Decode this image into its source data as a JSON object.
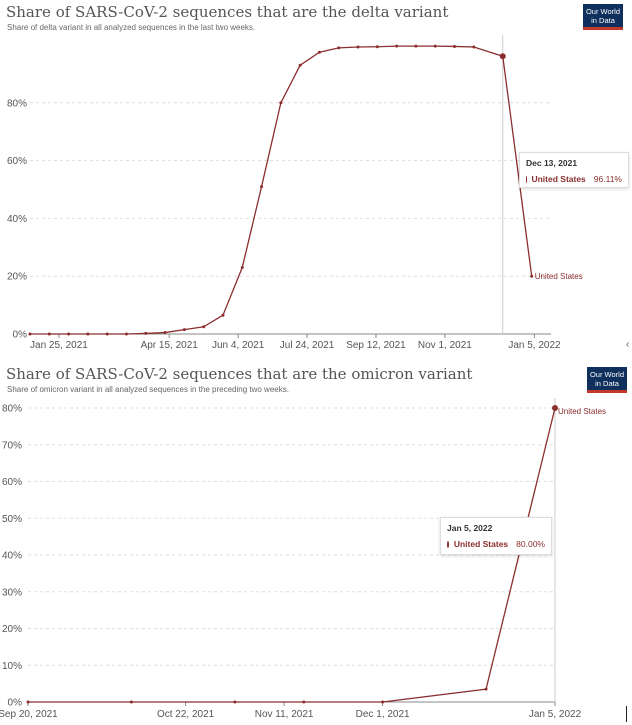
{
  "colors": {
    "series": "#8b2e2e",
    "grid": "#dddddd",
    "axis": "#888888",
    "logo_bg": "#0f2f5c",
    "logo_accent": "#c0392b"
  },
  "icons": {
    "edge": "chevron-left-icon"
  },
  "chart_data": [
    {
      "type": "line",
      "title": "Share of SARS-CoV-2 sequences that are the delta variant",
      "subtitle": "Share of delta variant in all analyzed sequences in the last two weeks.",
      "logo": [
        "Our World",
        "in Data"
      ],
      "ylim": [
        0,
        100
      ],
      "grid": true,
      "yticks": [
        0,
        20,
        40,
        60,
        80
      ],
      "ytick_labels": [
        "0%",
        "20%",
        "40%",
        "60%",
        "80%"
      ],
      "xlim": [
        "2021-01-04",
        "2022-01-17"
      ],
      "xticks": [
        "2021-01-25",
        "2021-04-15",
        "2021-06-04",
        "2021-07-24",
        "2021-09-12",
        "2021-11-01",
        "2022-01-05"
      ],
      "xtick_labels": [
        "Jan 25, 2021",
        "Apr 15, 2021",
        "Jun 4, 2021",
        "Jul 24, 2021",
        "Sep 12, 2021",
        "Nov 1, 2021",
        "Jan 5, 2022"
      ],
      "series": [
        {
          "name": "United States",
          "x": [
            "2021-01-04",
            "2021-01-18",
            "2021-02-01",
            "2021-02-15",
            "2021-03-01",
            "2021-03-15",
            "2021-03-29",
            "2021-04-12",
            "2021-04-26",
            "2021-05-10",
            "2021-05-24",
            "2021-06-07",
            "2021-06-21",
            "2021-07-05",
            "2021-07-19",
            "2021-08-02",
            "2021-08-16",
            "2021-08-30",
            "2021-09-13",
            "2021-09-27",
            "2021-10-11",
            "2021-10-25",
            "2021-11-08",
            "2021-11-22",
            "2021-12-13",
            "2022-01-03"
          ],
          "y": [
            0,
            0,
            0,
            0,
            0,
            0,
            0.2,
            0.5,
            1.5,
            2.5,
            6.5,
            23,
            51,
            80,
            93,
            97.5,
            99,
            99.3,
            99.4,
            99.6,
            99.6,
            99.6,
            99.5,
            99.3,
            96.11,
            20
          ]
        }
      ],
      "end_label": "United States",
      "tooltip": {
        "date": "Dec 13, 2021",
        "series": "United States",
        "value": "96.11%",
        "value_num": 96.11,
        "x": "2021-12-13"
      }
    },
    {
      "type": "line",
      "title": "Share of SARS-CoV-2 sequences that are the omicron variant",
      "subtitle": "Share of omicron variant in all analyzed sequences in the preceding two weeks.",
      "logo": [
        "Our World",
        "in Data"
      ],
      "ylim": [
        0,
        80
      ],
      "grid": true,
      "yticks": [
        0,
        10,
        20,
        30,
        40,
        50,
        60,
        70,
        80
      ],
      "ytick_labels": [
        "0%",
        "10%",
        "20%",
        "30%",
        "40%",
        "50%",
        "60%",
        "70%",
        "80%"
      ],
      "xlim": [
        "2021-09-20",
        "2022-01-05"
      ],
      "xticks": [
        "2021-09-20",
        "2021-10-22",
        "2021-11-11",
        "2021-12-01",
        "2022-01-05"
      ],
      "xtick_labels": [
        "Sep 20, 2021",
        "Oct 22, 2021",
        "Nov 11, 2021",
        "Dec 1, 2021",
        "Jan 5, 2022"
      ],
      "series": [
        {
          "name": "United States",
          "x": [
            "2021-09-20",
            "2021-10-11",
            "2021-11-01",
            "2021-11-15",
            "2021-12-01",
            "2021-12-22",
            "2022-01-05"
          ],
          "y": [
            0,
            0,
            0,
            0,
            0,
            3.5,
            80
          ]
        }
      ],
      "end_label": "United States",
      "tooltip": {
        "date": "Jan 5, 2022",
        "series": "United States",
        "value": "80.00%",
        "value_num": 80.0,
        "x": "2022-01-05"
      }
    }
  ]
}
